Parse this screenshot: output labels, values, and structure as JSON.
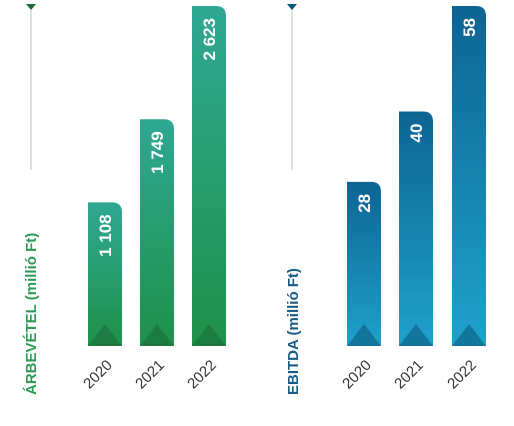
{
  "chart_data": [
    {
      "type": "bar",
      "ylabel": "ÁRBEVÉTEL (millió Ft)",
      "categories": [
        "2020",
        "2021",
        "2022"
      ],
      "values": [
        1108,
        1749,
        2623
      ],
      "value_labels": [
        "1 108",
        "1 749",
        "2 623"
      ],
      "ylim": [
        0,
        2623
      ],
      "grid": false,
      "colors": {
        "bar_top": "#2fa894",
        "bar_bottom": "#1f9148",
        "label": "#2e9a55",
        "marker": "#1a6a3a"
      }
    },
    {
      "type": "bar",
      "ylabel": "EBITDA (millió Ft)",
      "categories": [
        "2020",
        "2021",
        "2022"
      ],
      "values": [
        28,
        40,
        58
      ],
      "value_labels": [
        "28",
        "40",
        "58"
      ],
      "ylim": [
        0,
        58
      ],
      "grid": false,
      "colors": {
        "bar_top": "#0d6493",
        "bar_bottom": "#1fa1cc",
        "label": "#1b5c86",
        "marker": "#0a5476"
      }
    }
  ]
}
